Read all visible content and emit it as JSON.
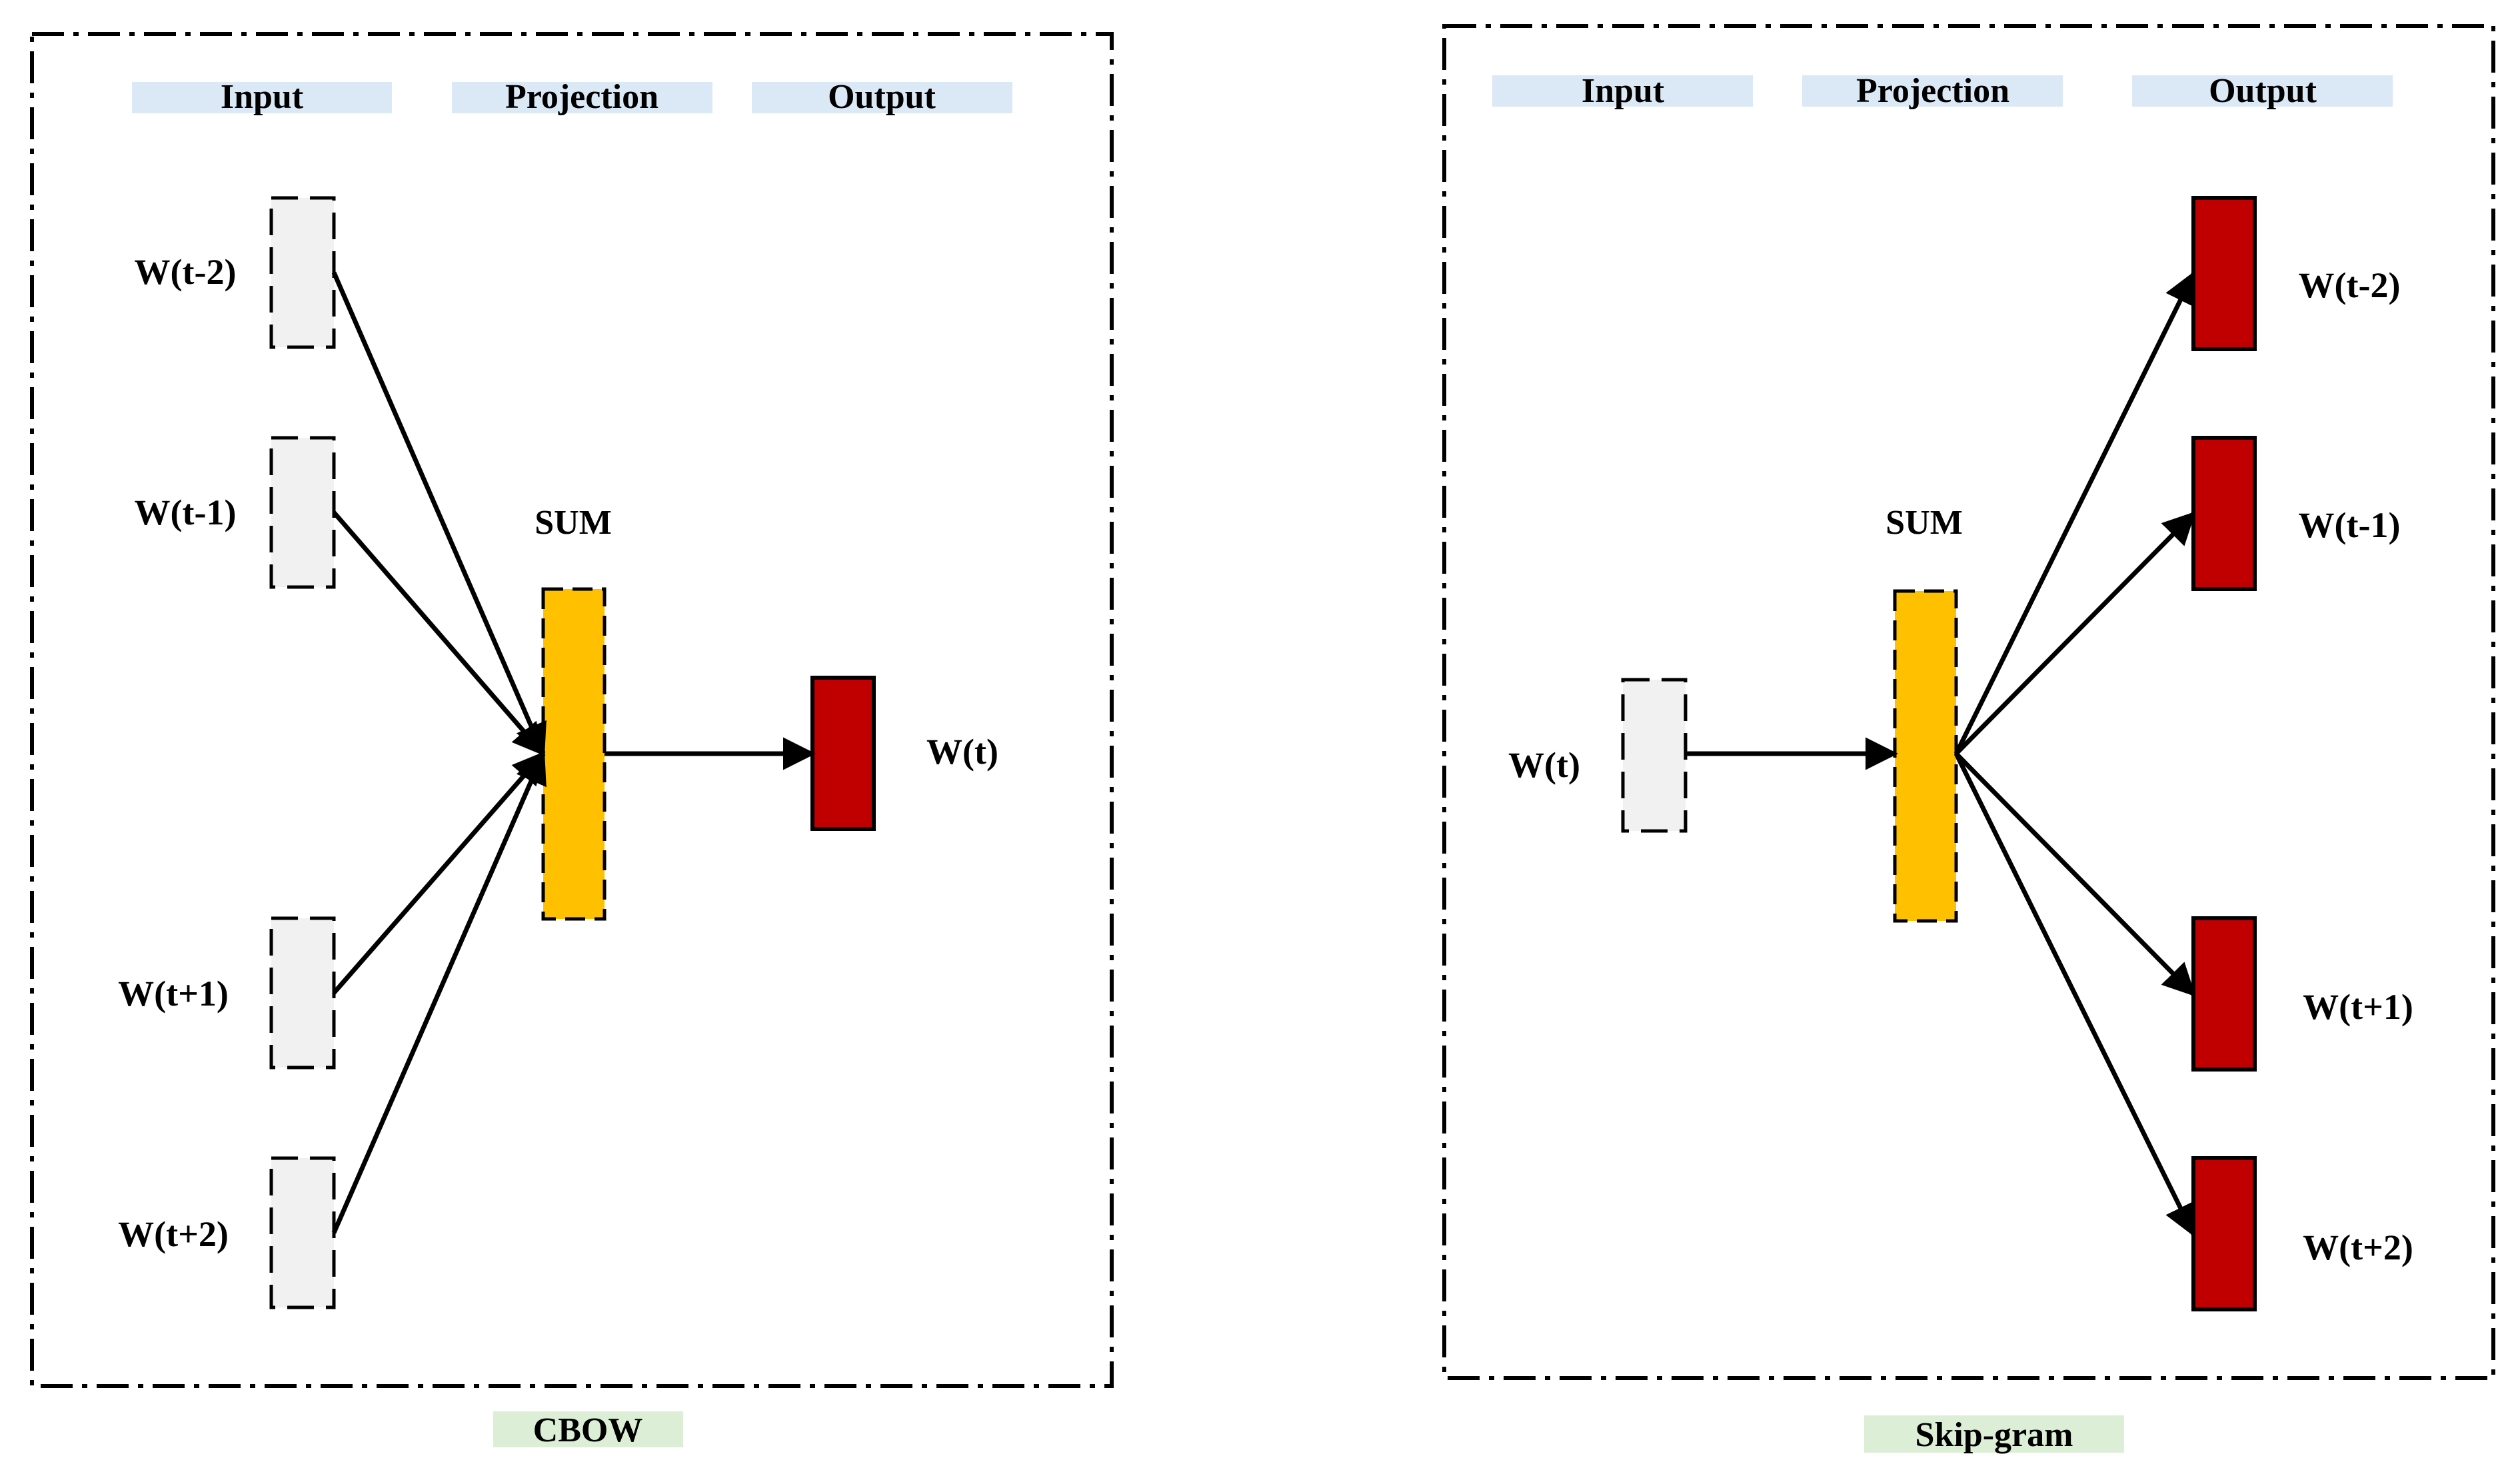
{
  "colors": {
    "header_bg": "#dbe8f5",
    "caption_bg": "#dcefd6",
    "input_box_fill": "#f1f1f1",
    "projection_fill": "#ffc000",
    "output_fill": "#c00000",
    "stroke": "#000000"
  },
  "cbow": {
    "headers": {
      "input": "Input",
      "projection": "Projection",
      "output": "Output"
    },
    "inputs": [
      "W(t-2)",
      "W(t-1)",
      "W(t+1)",
      "W(t+2)"
    ],
    "projection_label": "SUM",
    "output": "W(t)",
    "caption": "CBOW"
  },
  "skipgram": {
    "headers": {
      "input": "Input",
      "projection": "Projection",
      "output": "Output"
    },
    "input": "W(t)",
    "projection_label": "SUM",
    "outputs": [
      "W(t-2)",
      "W(t-1)",
      "W(t+1)",
      "W(t+2)"
    ],
    "caption": "Skip-gram"
  }
}
